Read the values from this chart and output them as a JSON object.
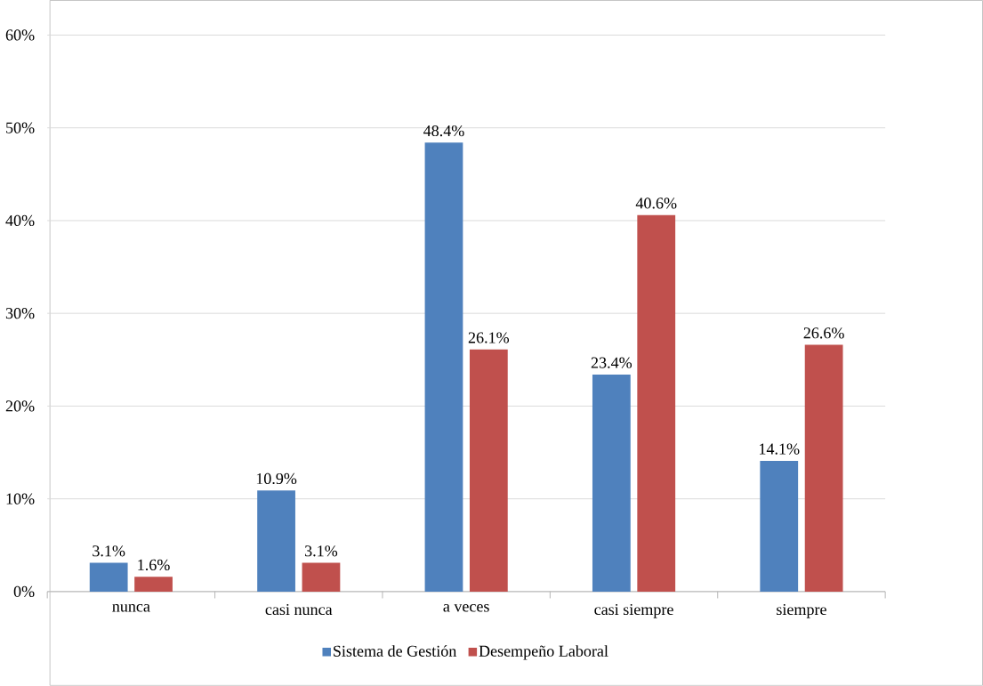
{
  "chart_data": {
    "type": "bar",
    "categories": [
      "nunca",
      "casi nunca",
      "a veces",
      "casi siempre",
      "siempre"
    ],
    "series": [
      {
        "name": "Sistema de Gestión",
        "color": "#4f81bd",
        "values": [
          3.1,
          10.9,
          48.4,
          23.4,
          14.1
        ],
        "value_labels": [
          "3.1%",
          "10.9%",
          "48.4%",
          "23.4%",
          "14.1%"
        ]
      },
      {
        "name": "Desempeño Laboral",
        "color": "#c0504d",
        "values": [
          1.6,
          3.1,
          26.1,
          40.6,
          26.6
        ],
        "value_labels": [
          "1.6%",
          "3.1%",
          "26.1%",
          "40.6%",
          "26.6%"
        ]
      }
    ],
    "ylim": [
      0,
      60
    ],
    "yticks": [
      {
        "value": 0,
        "label": "0%"
      },
      {
        "value": 10,
        "label": "10%"
      },
      {
        "value": 20,
        "label": "20%"
      },
      {
        "value": 30,
        "label": "30%"
      },
      {
        "value": 40,
        "label": "40%"
      },
      {
        "value": 50,
        "label": "50%"
      },
      {
        "value": 60,
        "label": "60%"
      }
    ],
    "grid": "y",
    "legend": "bottom"
  }
}
